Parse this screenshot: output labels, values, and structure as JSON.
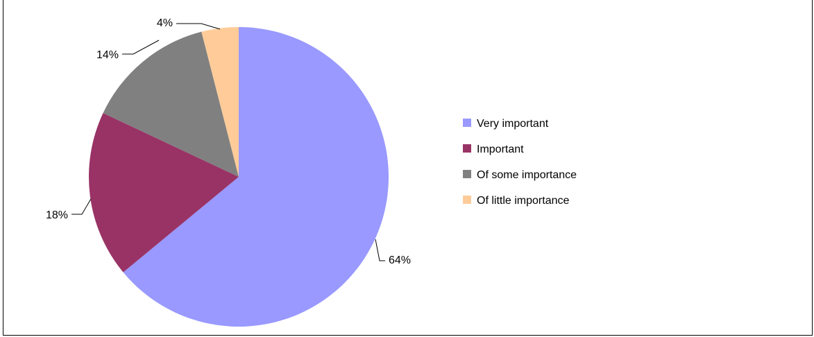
{
  "chart_data": {
    "type": "pie",
    "title": "",
    "slices": [
      {
        "label": "Very important",
        "value": 64,
        "value_label": "64%",
        "color": "#9999FF"
      },
      {
        "label": "Important",
        "value": 18,
        "value_label": "18%",
        "color": "#993366"
      },
      {
        "label": "Of some importance",
        "value": 14,
        "value_label": "14%",
        "color": "#808080"
      },
      {
        "label": "Of little importance",
        "value": 4,
        "value_label": "4%",
        "color": "#FFCC99"
      }
    ],
    "start_angle_deg": 0,
    "direction": "clockwise",
    "legend_position": "right"
  }
}
